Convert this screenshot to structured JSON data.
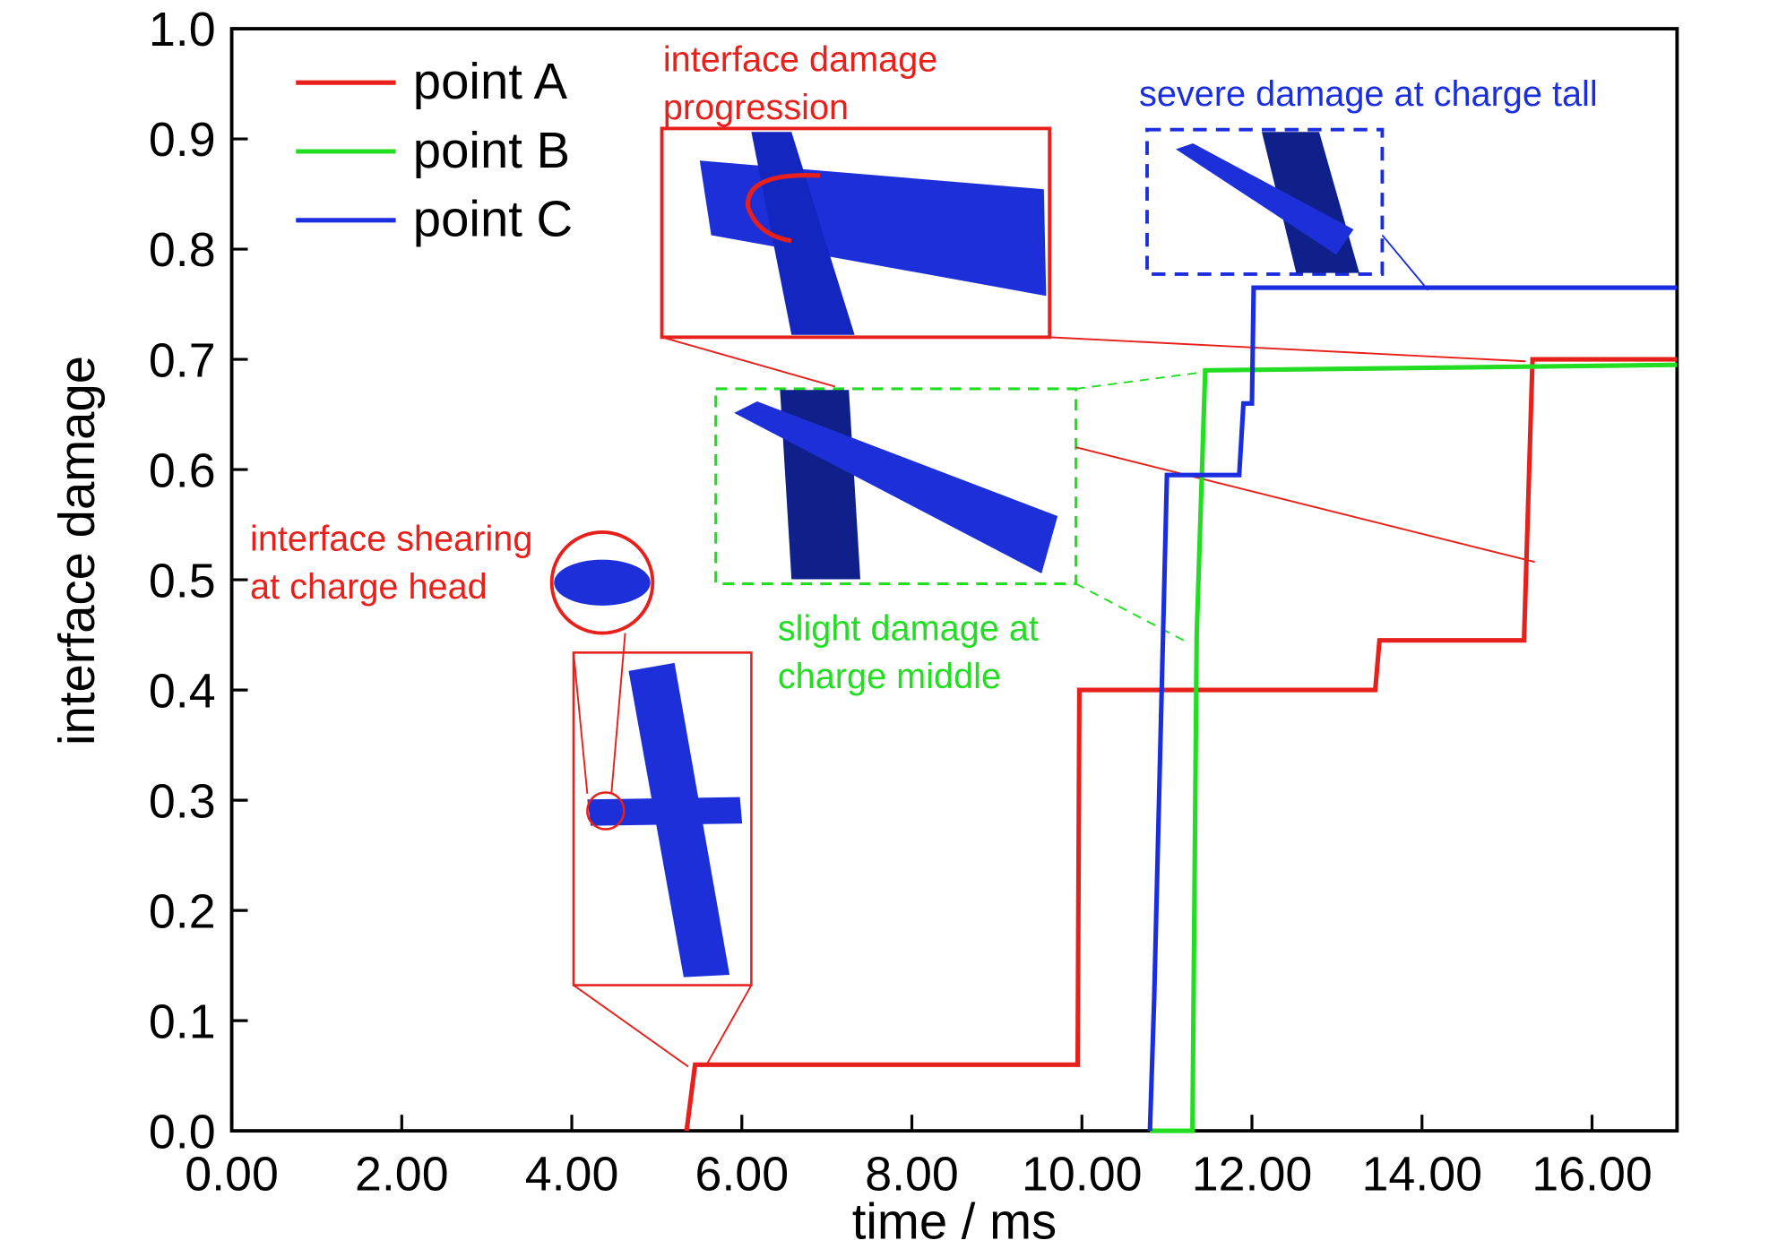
{
  "chart_data": {
    "type": "line",
    "x_label": "time / ms",
    "y_label": "interface damage",
    "xlim": [
      0,
      17
    ],
    "ylim": [
      0,
      1
    ],
    "xticks": [
      {
        "value": 0,
        "label": "0.00"
      },
      {
        "value": 2,
        "label": "2.00"
      },
      {
        "value": 4,
        "label": "4.00"
      },
      {
        "value": 6,
        "label": "6.00"
      },
      {
        "value": 8,
        "label": "8.00"
      },
      {
        "value": 10,
        "label": "10.00"
      },
      {
        "value": 12,
        "label": "12.00"
      },
      {
        "value": 14,
        "label": "14.00"
      },
      {
        "value": 16,
        "label": "16.00"
      }
    ],
    "yticks": [
      {
        "value": 0,
        "label": "0.0"
      },
      0.1,
      0.2,
      0.3,
      0.4,
      0.5,
      0.6,
      0.7,
      0.8,
      0.9,
      {
        "value": 1,
        "label": "1.0"
      }
    ],
    "series": [
      {
        "name": "point A",
        "color": "#e8201c",
        "x": [
          5.35,
          5.4,
          5.45,
          9.95,
          9.97,
          13.45,
          13.5,
          15.2,
          15.3,
          17
        ],
        "values": [
          0,
          0.03,
          0.06,
          0.06,
          0.4,
          0.4,
          0.445,
          0.445,
          0.7,
          0.7
        ]
      },
      {
        "name": "point B",
        "color": "#22dd22",
        "x": [
          10.8,
          11.3,
          11.35,
          11.45,
          17
        ],
        "values": [
          0,
          0,
          0.45,
          0.69,
          0.695
        ]
      },
      {
        "name": "point C",
        "color": "#1a2ee0",
        "x": [
          10.8,
          10.85,
          11.0,
          11.85,
          11.9,
          12.0,
          12.02,
          17
        ],
        "values": [
          0,
          0.12,
          0.595,
          0.595,
          0.66,
          0.66,
          0.765,
          0.765
        ]
      }
    ],
    "annotations": [
      {
        "lines": [
          "interface damage",
          "progression"
        ],
        "color": "#e8201c"
      },
      {
        "lines": [
          "severe damage at charge tall"
        ],
        "color": "#1a2ee0"
      },
      {
        "lines": [
          "interface shearing",
          "at charge head"
        ],
        "color": "#e8201c"
      },
      {
        "lines": [
          "slight damage at",
          "charge middle"
        ],
        "color": "#22dd22"
      }
    ]
  }
}
